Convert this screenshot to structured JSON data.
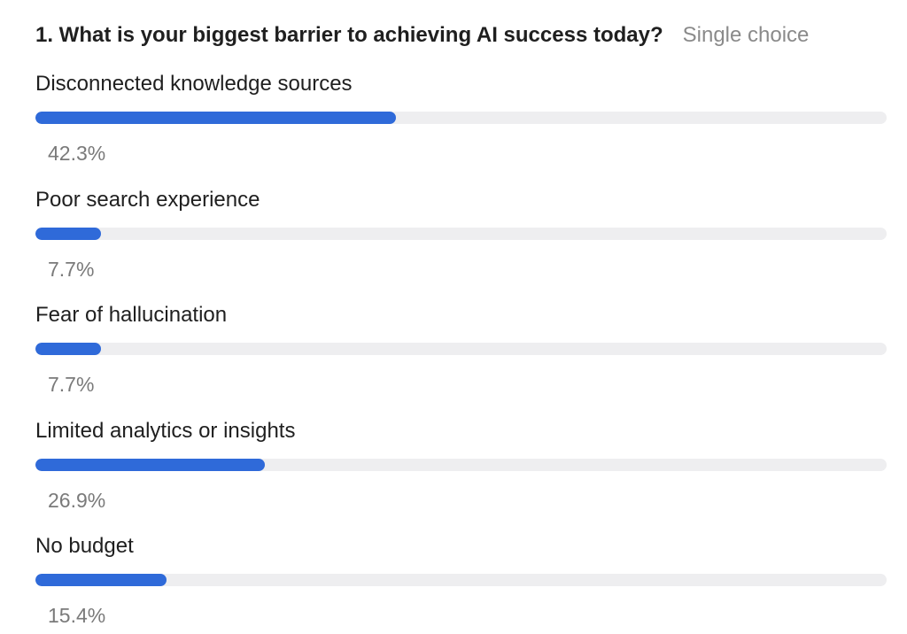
{
  "question": {
    "title": "1. What is your biggest barrier to achieving AI success today?",
    "type_label": "Single choice"
  },
  "options": [
    {
      "label": "Disconnected knowledge sources",
      "percent_text": "42.3%",
      "fraction": 0.423
    },
    {
      "label": "Poor search experience",
      "percent_text": "7.7%",
      "fraction": 0.077
    },
    {
      "label": "Fear of hallucination",
      "percent_text": "7.7%",
      "fraction": 0.077
    },
    {
      "label": "Limited analytics or insights",
      "percent_text": "26.9%",
      "fraction": 0.269
    },
    {
      "label": "No budget",
      "percent_text": "15.4%",
      "fraction": 0.154
    }
  ],
  "colors": {
    "bar_fill": "#2f6ad9",
    "bar_track": "#eeeef0",
    "title_text": "#1f1f1f",
    "muted_text": "#8a8a8a"
  }
}
